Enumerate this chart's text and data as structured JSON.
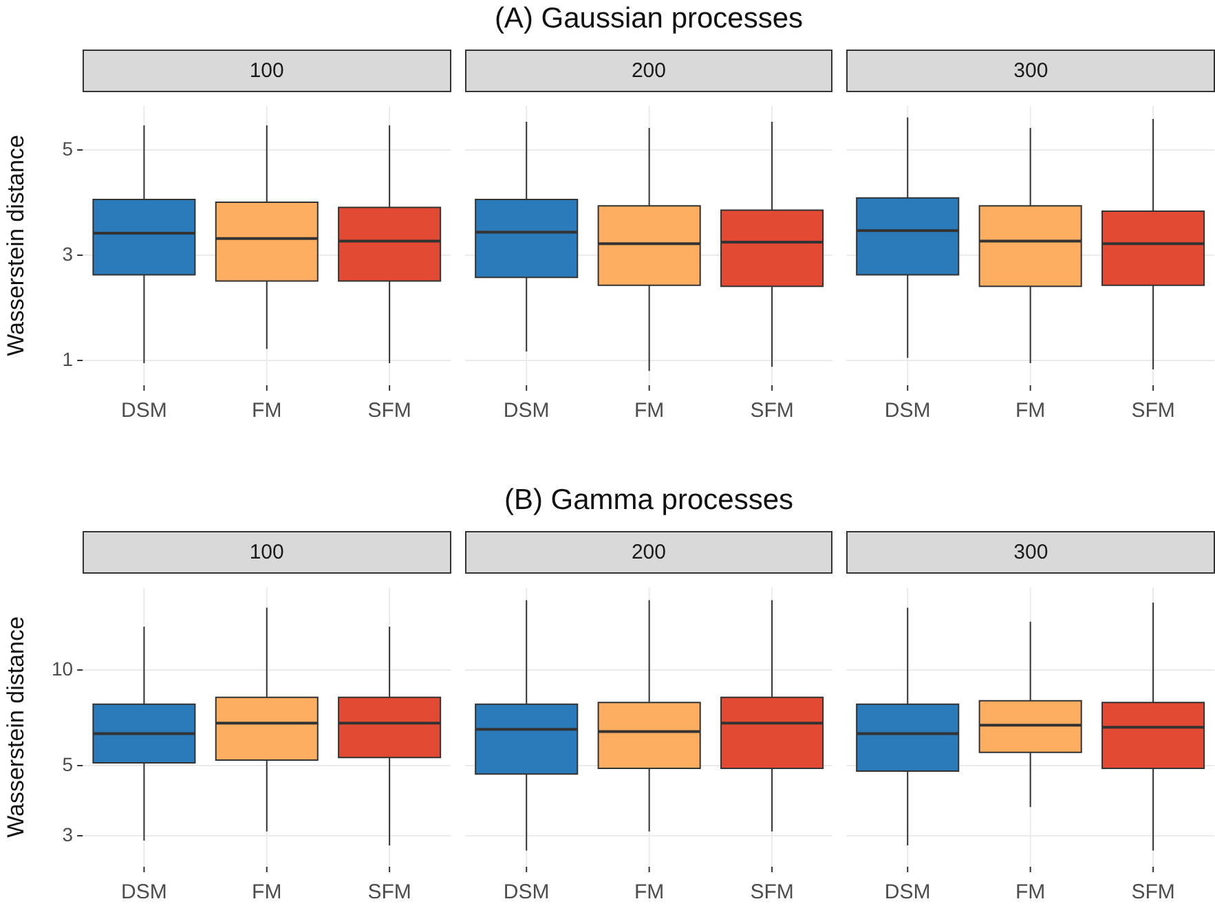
{
  "chart_data": [
    {
      "type": "box",
      "subtitle": "100",
      "ylabel": "Wasserstein distance",
      "categories": [
        "DSM",
        "FM",
        "SFM"
      ],
      "colors": [
        "#2b7bba",
        "#fdae61",
        "#e34a33"
      ],
      "ylim": [
        0.53,
        5.84
      ],
      "yticks": [
        1,
        3,
        5
      ],
      "grid": true,
      "boxes": [
        {
          "low": 0.95,
          "q1": 2.63,
          "median": 3.42,
          "q3": 4.06,
          "high": 5.47
        },
        {
          "low": 1.22,
          "q1": 2.51,
          "median": 3.32,
          "q3": 4.01,
          "high": 5.47
        },
        {
          "low": 0.95,
          "q1": 2.51,
          "median": 3.27,
          "q3": 3.91,
          "high": 5.47
        }
      ]
    },
    {
      "type": "box",
      "title": "(A) Gaussian processes",
      "subtitle": "200",
      "categories": [
        "DSM",
        "FM",
        "SFM"
      ],
      "colors": [
        "#2b7bba",
        "#fdae61",
        "#e34a33"
      ],
      "ylim": [
        0.53,
        5.84
      ],
      "yticks": [
        1,
        3,
        5
      ],
      "grid": true,
      "tick_labels": "x",
      "boxes": [
        {
          "low": 1.17,
          "q1": 2.58,
          "median": 3.44,
          "q3": 4.06,
          "high": 5.54
        },
        {
          "low": 0.8,
          "q1": 2.43,
          "median": 3.22,
          "q3": 3.94,
          "high": 5.42
        },
        {
          "low": 0.88,
          "q1": 2.41,
          "median": 3.25,
          "q3": 3.86,
          "high": 5.54
        }
      ]
    },
    {
      "type": "box",
      "subtitle": "300",
      "categories": [
        "DSM",
        "FM",
        "SFM"
      ],
      "colors": [
        "#2b7bba",
        "#fdae61",
        "#e34a33"
      ],
      "ylim": [
        0.53,
        5.84
      ],
      "yticks": [
        1,
        3,
        5
      ],
      "grid": true,
      "tick_labels": "x",
      "boxes": [
        {
          "low": 1.05,
          "q1": 2.63,
          "median": 3.47,
          "q3": 4.09,
          "high": 5.62
        },
        {
          "low": 0.95,
          "q1": 2.41,
          "median": 3.27,
          "q3": 3.94,
          "high": 5.42
        },
        {
          "low": 0.83,
          "q1": 2.43,
          "median": 3.22,
          "q3": 3.84,
          "high": 5.59
        }
      ]
    },
    {
      "type": "box",
      "subtitle": "100",
      "ylabel": "Wasserstein distance",
      "categories": [
        "DSM",
        "FM",
        "SFM"
      ],
      "colors": [
        "#2b7bba",
        "#fdae61",
        "#e34a33"
      ],
      "ylim": [
        2.4,
        18.2
      ],
      "yticks": [
        3,
        5,
        10
      ],
      "log": true,
      "grid": true,
      "boxes": [
        {
          "low": 2.9,
          "q1": 5.1,
          "median": 6.3,
          "q3": 7.8,
          "high": 13.7
        },
        {
          "low": 3.1,
          "q1": 5.2,
          "median": 6.8,
          "q3": 8.2,
          "high": 15.7
        },
        {
          "low": 2.8,
          "q1": 5.3,
          "median": 6.8,
          "q3": 8.2,
          "high": 13.7
        }
      ]
    },
    {
      "type": "box",
      "title": "(B) Gamma processes",
      "subtitle": "200",
      "categories": [
        "DSM",
        "FM",
        "SFM"
      ],
      "colors": [
        "#2b7bba",
        "#fdae61",
        "#e34a33"
      ],
      "ylim": [
        2.4,
        18.2
      ],
      "yticks": [
        3,
        5,
        10
      ],
      "log": true,
      "grid": true,
      "tick_labels": "x",
      "boxes": [
        {
          "low": 2.7,
          "q1": 4.7,
          "median": 6.5,
          "q3": 7.8,
          "high": 16.6
        },
        {
          "low": 3.1,
          "q1": 4.9,
          "median": 6.4,
          "q3": 7.9,
          "high": 16.6
        },
        {
          "low": 3.1,
          "q1": 4.9,
          "median": 6.8,
          "q3": 8.2,
          "high": 16.6
        }
      ]
    },
    {
      "type": "box",
      "subtitle": "300",
      "categories": [
        "DSM",
        "FM",
        "SFM"
      ],
      "colors": [
        "#2b7bba",
        "#fdae61",
        "#e34a33"
      ],
      "ylim": [
        2.4,
        18.2
      ],
      "yticks": [
        3,
        5,
        10
      ],
      "log": true,
      "grid": true,
      "tick_labels": "x",
      "boxes": [
        {
          "low": 2.8,
          "q1": 4.8,
          "median": 6.3,
          "q3": 7.8,
          "high": 15.7
        },
        {
          "low": 3.7,
          "q1": 5.5,
          "median": 6.7,
          "q3": 8.0,
          "high": 14.2
        },
        {
          "low": 2.7,
          "q1": 4.9,
          "median": 6.6,
          "q3": 7.9,
          "high": 16.3
        }
      ]
    }
  ]
}
